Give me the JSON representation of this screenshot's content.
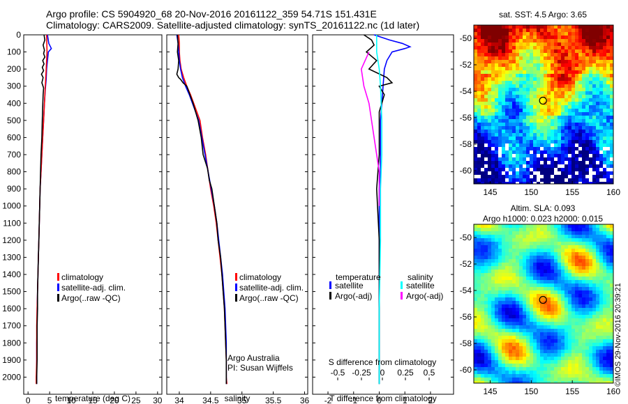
{
  "header": {
    "line1": "Argo profile: CS 5904920_68 20-Nov-2016 20161122_359 54.71S 151.431E",
    "line2": "Climatology: CARS2009. Satellite-adjusted climatology: synTS_20161122.nc (1d later)"
  },
  "chart_data": [
    {
      "type": "line",
      "id": "temperature",
      "xlabel": "temperature (deg C)",
      "ylabel": "",
      "xlim": [
        -1,
        31
      ],
      "ylim": [
        2100,
        0
      ],
      "xticks": [
        0,
        5,
        10,
        15,
        20,
        25,
        30
      ],
      "yticks": [
        0,
        100,
        200,
        300,
        400,
        500,
        600,
        700,
        800,
        900,
        1000,
        1100,
        1200,
        1300,
        1400,
        1500,
        1600,
        1700,
        1800,
        1900,
        2000
      ],
      "legend": [
        "climatology",
        "satellite-adj. clim.",
        "Argo(..raw -QC)"
      ],
      "series": [
        {
          "color": "#0000ff",
          "points": [
            [
              4.5,
              0
            ],
            [
              4.8,
              50
            ],
            [
              5.4,
              80
            ],
            [
              4.7,
              100
            ],
            [
              4.5,
              150
            ],
            [
              4.3,
              200
            ],
            [
              4.2,
              260
            ],
            [
              4.0,
              320
            ],
            [
              3.8,
              400
            ],
            [
              3.6,
              500
            ],
            [
              3.4,
              600
            ],
            [
              3.2,
              700
            ],
            [
              3.0,
              800
            ],
            [
              2.8,
              900
            ],
            [
              2.7,
              1000
            ],
            [
              2.6,
              1100
            ],
            [
              2.5,
              1200
            ],
            [
              2.4,
              1300
            ],
            [
              2.3,
              1400
            ],
            [
              2.2,
              1500
            ],
            [
              2.1,
              1600
            ],
            [
              2.1,
              1700
            ],
            [
              2.0,
              1800
            ],
            [
              2.0,
              1900
            ],
            [
              2.0,
              2000
            ],
            [
              2.0,
              2040
            ]
          ]
        },
        {
          "color": "#ff0000",
          "points": [
            [
              4.3,
              0
            ],
            [
              4.4,
              100
            ],
            [
              4.2,
              200
            ],
            [
              4.0,
              300
            ],
            [
              3.8,
              400
            ],
            [
              3.6,
              500
            ],
            [
              3.4,
              600
            ],
            [
              3.2,
              700
            ],
            [
              3.0,
              800
            ],
            [
              2.8,
              900
            ],
            [
              2.7,
              1000
            ],
            [
              2.6,
              1100
            ],
            [
              2.5,
              1200
            ],
            [
              2.4,
              1300
            ],
            [
              2.3,
              1400
            ],
            [
              2.2,
              1500
            ],
            [
              2.1,
              1600
            ],
            [
              2.0,
              1700
            ],
            [
              2.0,
              1800
            ],
            [
              2.0,
              1900
            ],
            [
              1.9,
              2000
            ],
            [
              1.9,
              2040
            ]
          ]
        },
        {
          "color": "#000000",
          "points": [
            [
              3.7,
              0
            ],
            [
              3.9,
              30
            ],
            [
              3.5,
              60
            ],
            [
              3.8,
              90
            ],
            [
              3.6,
              110
            ],
            [
              3.9,
              130
            ],
            [
              3.4,
              150
            ],
            [
              3.7,
              170
            ],
            [
              3.3,
              190
            ],
            [
              3.6,
              210
            ],
            [
              3.1,
              230
            ],
            [
              3.5,
              250
            ],
            [
              3.2,
              280
            ],
            [
              3.6,
              310
            ],
            [
              3.5,
              350
            ],
            [
              3.4,
              420
            ],
            [
              3.3,
              500
            ],
            [
              3.2,
              600
            ],
            [
              3.0,
              700
            ],
            [
              2.9,
              800
            ],
            [
              2.8,
              900
            ],
            [
              2.7,
              1000
            ],
            [
              2.6,
              1100
            ],
            [
              2.5,
              1200
            ],
            [
              2.4,
              1300
            ],
            [
              2.3,
              1400
            ],
            [
              2.2,
              1500
            ],
            [
              2.2,
              1600
            ],
            [
              2.1,
              1700
            ],
            [
              2.1,
              1800
            ],
            [
              2.1,
              1900
            ],
            [
              2.0,
              2000
            ],
            [
              2.0,
              2040
            ]
          ]
        }
      ]
    },
    {
      "type": "line",
      "id": "salinity",
      "xlabel": "salinity",
      "ylabel": "",
      "xlim": [
        33.8,
        36.05
      ],
      "ylim": [
        2100,
        0
      ],
      "xticks": [
        34,
        34.5,
        35,
        35.5,
        36
      ],
      "xticklabels": [
        "34",
        "34.5",
        "35",
        "35.5",
        "36"
      ],
      "legend": [
        "climatology",
        "satellite-adj. clim.",
        "Argo(..raw -QC)"
      ],
      "annotation": [
        "Argo Australia",
        "PI: Susan Wijffels"
      ],
      "series": [
        {
          "color": "#ff0000",
          "points": [
            [
              33.99,
              0
            ],
            [
              34.0,
              50
            ],
            [
              34.0,
              100
            ],
            [
              34.01,
              150
            ],
            [
              34.03,
              200
            ],
            [
              34.07,
              250
            ],
            [
              34.12,
              300
            ],
            [
              34.18,
              350
            ],
            [
              34.23,
              400
            ],
            [
              34.28,
              450
            ],
            [
              34.33,
              500
            ],
            [
              34.37,
              600
            ],
            [
              34.42,
              700
            ],
            [
              34.46,
              800
            ],
            [
              34.5,
              900
            ],
            [
              34.55,
              1000
            ],
            [
              34.59,
              1100
            ],
            [
              34.62,
              1200
            ],
            [
              34.65,
              1300
            ],
            [
              34.68,
              1400
            ],
            [
              34.7,
              1500
            ],
            [
              34.72,
              1600
            ],
            [
              34.73,
              1700
            ],
            [
              34.74,
              1800
            ],
            [
              34.75,
              1900
            ],
            [
              34.75,
              2000
            ],
            [
              34.76,
              2040
            ]
          ]
        },
        {
          "color": "#0000ff",
          "points": [
            [
              33.96,
              0
            ],
            [
              33.98,
              50
            ],
            [
              33.99,
              100
            ],
            [
              34.0,
              150
            ],
            [
              34.02,
              200
            ],
            [
              34.05,
              250
            ],
            [
              34.1,
              300
            ],
            [
              34.16,
              350
            ],
            [
              34.21,
              400
            ],
            [
              34.26,
              450
            ],
            [
              34.31,
              500
            ],
            [
              34.36,
              600
            ],
            [
              34.41,
              700
            ],
            [
              34.46,
              800
            ],
            [
              34.51,
              900
            ],
            [
              34.56,
              1000
            ],
            [
              34.6,
              1100
            ],
            [
              34.63,
              1200
            ],
            [
              34.66,
              1300
            ],
            [
              34.69,
              1400
            ],
            [
              34.71,
              1500
            ],
            [
              34.73,
              1600
            ],
            [
              34.74,
              1700
            ],
            [
              34.75,
              1800
            ],
            [
              34.75,
              1900
            ],
            [
              34.75,
              2000
            ],
            [
              34.75,
              2040
            ]
          ]
        },
        {
          "color": "#000000",
          "points": [
            [
              33.97,
              0
            ],
            [
              33.98,
              50
            ],
            [
              33.97,
              100
            ],
            [
              33.99,
              150
            ],
            [
              33.98,
              200
            ],
            [
              33.96,
              230
            ],
            [
              33.99,
              250
            ],
            [
              34.02,
              260
            ],
            [
              34.06,
              280
            ],
            [
              34.12,
              300
            ],
            [
              34.17,
              350
            ],
            [
              34.22,
              400
            ],
            [
              34.26,
              450
            ],
            [
              34.3,
              500
            ],
            [
              34.35,
              600
            ],
            [
              34.38,
              700
            ],
            [
              34.45,
              780
            ],
            [
              34.48,
              850
            ],
            [
              34.52,
              900
            ],
            [
              34.56,
              1000
            ],
            [
              34.6,
              1100
            ],
            [
              34.62,
              1200
            ],
            [
              34.66,
              1300
            ],
            [
              34.68,
              1400
            ],
            [
              34.7,
              1500
            ],
            [
              34.72,
              1600
            ],
            [
              34.73,
              1700
            ],
            [
              34.74,
              1800
            ],
            [
              34.75,
              1900
            ],
            [
              34.75,
              2000
            ],
            [
              34.75,
              2040
            ]
          ]
        }
      ]
    },
    {
      "type": "line",
      "id": "difference",
      "xlabel": "T difference from climatology",
      "xlabel_top": "S difference from climatology",
      "xlim": [
        -2.6,
        2.9
      ],
      "ylim": [
        2100,
        0
      ],
      "xticks": [
        -2,
        -1,
        0,
        1,
        2
      ],
      "top_ticks": [
        -0.5,
        -0.25,
        0,
        0.25,
        0.5
      ],
      "top_ticklabels": [
        "-0.5",
        "-0.25",
        "0",
        "0.25",
        "0.5"
      ],
      "legend_left_title": "temperature",
      "legend_left": [
        "satellite",
        "Argo(-adj)"
      ],
      "legend_right_title": "salinity",
      "legend_right": [
        "satellite",
        "Argo(-adj)"
      ],
      "series": [
        {
          "color": "#0000ff",
          "points": [
            [
              -0.2,
              0
            ],
            [
              0.4,
              30
            ],
            [
              0.9,
              50
            ],
            [
              1.2,
              70
            ],
            [
              1.0,
              80
            ],
            [
              0.5,
              100
            ],
            [
              0.3,
              150
            ],
            [
              0.2,
              200
            ],
            [
              0.15,
              300
            ],
            [
              0.1,
              400
            ],
            [
              0.05,
              500
            ],
            [
              0.05,
              600
            ],
            [
              0.05,
              700
            ],
            [
              0.05,
              800
            ],
            [
              0.0,
              900
            ],
            [
              0.0,
              1000
            ],
            [
              0.0,
              1200
            ],
            [
              0.0,
              1500
            ],
            [
              0.0,
              2040
            ]
          ]
        },
        {
          "color": "#000000",
          "points": [
            [
              -0.6,
              0
            ],
            [
              -0.3,
              30
            ],
            [
              -0.2,
              60
            ],
            [
              -0.5,
              100
            ],
            [
              -0.1,
              150
            ],
            [
              -0.4,
              200
            ],
            [
              0.3,
              250
            ],
            [
              0.5,
              280
            ],
            [
              0.0,
              300
            ],
            [
              0.2,
              350
            ],
            [
              0.0,
              450
            ],
            [
              0.0,
              700
            ],
            [
              -0.1,
              900
            ],
            [
              0.0,
              1200
            ],
            [
              0.0,
              2040
            ]
          ]
        },
        {
          "color": "#00ffff",
          "points": [
            [
              -0.1,
              0
            ],
            [
              -0.1,
              100
            ],
            [
              0.0,
              200
            ],
            [
              0.05,
              300
            ],
            [
              0.1,
              500
            ],
            [
              0.1,
              700
            ],
            [
              0.05,
              900
            ],
            [
              0.05,
              1200
            ],
            [
              0.0,
              1600
            ],
            [
              0.0,
              2040
            ]
          ]
        },
        {
          "color": "#ff00ff",
          "points": [
            [
              -0.4,
              100
            ],
            [
              -0.7,
              200
            ],
            [
              -0.6,
              300
            ],
            [
              -0.4,
              400
            ],
            [
              -0.2,
              600
            ],
            [
              0.0,
              800
            ],
            [
              0.0,
              1000
            ]
          ]
        }
      ]
    },
    {
      "type": "heatmap",
      "id": "sst-map",
      "title": "sat. SST: 4.5 Argo: 3.65",
      "xlim": [
        143,
        160
      ],
      "ylim": [
        -61,
        -49
      ],
      "xticks": [
        145,
        150,
        155,
        160
      ],
      "yticks": [
        -50,
        -52,
        -54,
        -56,
        -58,
        -60
      ],
      "marker": [
        151.43,
        -54.71
      ]
    },
    {
      "type": "heatmap",
      "id": "sla-map",
      "title": "Altim. SLA: 0.093",
      "subtitle": "Argo h1000: 0.023 h2000: 0.015",
      "xlim": [
        143,
        160
      ],
      "ylim": [
        -61,
        -49
      ],
      "xticks": [
        145,
        150,
        155,
        160
      ],
      "yticks": [
        -50,
        -52,
        -54,
        -56,
        -58,
        -60
      ],
      "marker": [
        151.43,
        -54.71
      ]
    }
  ],
  "credit": "©IMOS 29-Nov-2016 20:39:21",
  "colors": {
    "climatology": "#ff0000",
    "satellite": "#0000ff",
    "argo": "#000000",
    "sat_salinity": "#00ffff",
    "argo_salinity": "#ff00ff"
  }
}
